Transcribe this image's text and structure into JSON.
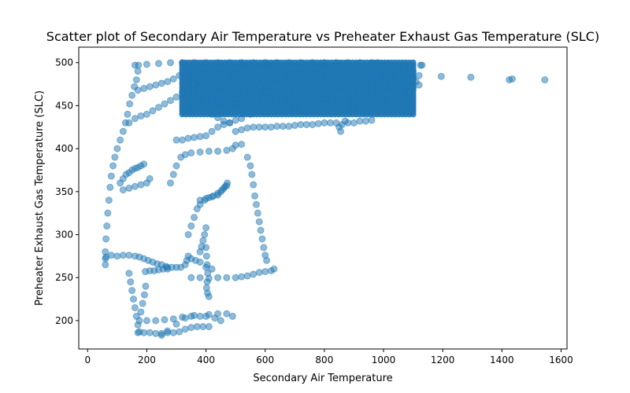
{
  "chart_data": {
    "type": "scatter",
    "title": "Scatter plot of Secondary Air Temperature vs Preheater Exhaust Gas Temperature (SLC)",
    "xlabel": "Secondary Air Temperature",
    "ylabel": "Preheater Exhaust Gas Temperature (SLC)",
    "xlim": [
      -30,
      1620
    ],
    "ylim": [
      167,
      518
    ],
    "xticks": [
      0,
      200,
      400,
      600,
      800,
      1000,
      1200,
      1400,
      1600
    ],
    "yticks": [
      200,
      250,
      300,
      350,
      400,
      450,
      500
    ],
    "grid": false,
    "marker_color": "#1f77b4",
    "marker_alpha": 0.5,
    "dense_band": {
      "x_range": [
        320,
        1100
      ],
      "y_range": [
        440,
        500
      ]
    },
    "points": [
      [
        60,
        265
      ],
      [
        60,
        280
      ],
      [
        62,
        295
      ],
      [
        65,
        310
      ],
      [
        68,
        325
      ],
      [
        72,
        340
      ],
      [
        76,
        355
      ],
      [
        80,
        368
      ],
      [
        86,
        380
      ],
      [
        92,
        390
      ],
      [
        100,
        400
      ],
      [
        110,
        410
      ],
      [
        120,
        420
      ],
      [
        128,
        430
      ],
      [
        135,
        440
      ],
      [
        142,
        452
      ],
      [
        150,
        462
      ],
      [
        158,
        472
      ],
      [
        165,
        480
      ],
      [
        170,
        490
      ],
      [
        172,
        497
      ],
      [
        60,
        272
      ],
      [
        62,
        274
      ],
      [
        80,
        276
      ],
      [
        100,
        275
      ],
      [
        120,
        276
      ],
      [
        140,
        276
      ],
      [
        160,
        275
      ],
      [
        175,
        274
      ],
      [
        190,
        272
      ],
      [
        205,
        270
      ],
      [
        220,
        268
      ],
      [
        235,
        266
      ],
      [
        250,
        265
      ],
      [
        265,
        263
      ],
      [
        270,
        262
      ],
      [
        140,
        255
      ],
      [
        145,
        245
      ],
      [
        150,
        235
      ],
      [
        155,
        225
      ],
      [
        160,
        215
      ],
      [
        165,
        205
      ],
      [
        170,
        195
      ],
      [
        175,
        187
      ],
      [
        175,
        200
      ],
      [
        180,
        210
      ],
      [
        186,
        220
      ],
      [
        192,
        230
      ],
      [
        196,
        240
      ],
      [
        170,
        186
      ],
      [
        190,
        186
      ],
      [
        210,
        186
      ],
      [
        230,
        185
      ],
      [
        250,
        185
      ],
      [
        270,
        186
      ],
      [
        290,
        186
      ],
      [
        310,
        187
      ],
      [
        330,
        190
      ],
      [
        350,
        192
      ],
      [
        370,
        193
      ],
      [
        390,
        193
      ],
      [
        410,
        193
      ],
      [
        200,
        200
      ],
      [
        230,
        200
      ],
      [
        260,
        201
      ],
      [
        290,
        202
      ],
      [
        320,
        204
      ],
      [
        350,
        205
      ],
      [
        380,
        205
      ],
      [
        410,
        207
      ],
      [
        440,
        208
      ],
      [
        470,
        208
      ],
      [
        490,
        205
      ],
      [
        250,
        183
      ],
      [
        270,
        188
      ],
      [
        300,
        196
      ],
      [
        330,
        203
      ],
      [
        360,
        206
      ],
      [
        400,
        205
      ],
      [
        430,
        203
      ],
      [
        450,
        200
      ],
      [
        195,
        257
      ],
      [
        210,
        258
      ],
      [
        225,
        258
      ],
      [
        240,
        259
      ],
      [
        255,
        260
      ],
      [
        270,
        260
      ],
      [
        285,
        262
      ],
      [
        300,
        262
      ],
      [
        315,
        262
      ],
      [
        330,
        265
      ],
      [
        335,
        270
      ],
      [
        340,
        275
      ],
      [
        350,
        272
      ],
      [
        365,
        270
      ],
      [
        380,
        268
      ],
      [
        400,
        262
      ],
      [
        420,
        260
      ],
      [
        350,
        250
      ],
      [
        380,
        250
      ],
      [
        410,
        249
      ],
      [
        440,
        250
      ],
      [
        470,
        250
      ],
      [
        500,
        250
      ],
      [
        520,
        251
      ],
      [
        540,
        252
      ],
      [
        560,
        254
      ],
      [
        580,
        256
      ],
      [
        600,
        257
      ],
      [
        620,
        258
      ],
      [
        630,
        260
      ],
      [
        340,
        300
      ],
      [
        350,
        310
      ],
      [
        360,
        320
      ],
      [
        370,
        330
      ],
      [
        380,
        335
      ],
      [
        395,
        340
      ],
      [
        410,
        343
      ],
      [
        425,
        345
      ],
      [
        440,
        348
      ],
      [
        455,
        352
      ],
      [
        465,
        356
      ],
      [
        472,
        360
      ],
      [
        400,
        308
      ],
      [
        395,
        300
      ],
      [
        390,
        293
      ],
      [
        385,
        286
      ],
      [
        380,
        280
      ],
      [
        380,
        340
      ],
      [
        400,
        342
      ],
      [
        420,
        344
      ],
      [
        440,
        346
      ],
      [
        450,
        350
      ],
      [
        460,
        354
      ],
      [
        470,
        357
      ],
      [
        280,
        360
      ],
      [
        290,
        370
      ],
      [
        300,
        380
      ],
      [
        315,
        390
      ],
      [
        330,
        393
      ],
      [
        350,
        395
      ],
      [
        380,
        396
      ],
      [
        410,
        397
      ],
      [
        440,
        397
      ],
      [
        470,
        398
      ],
      [
        490,
        400
      ],
      [
        500,
        404
      ],
      [
        300,
        410
      ],
      [
        320,
        410
      ],
      [
        340,
        412
      ],
      [
        360,
        413
      ],
      [
        380,
        414
      ],
      [
        400,
        415
      ],
      [
        420,
        420
      ],
      [
        440,
        425
      ],
      [
        460,
        428
      ],
      [
        480,
        430
      ],
      [
        500,
        433
      ],
      [
        520,
        435
      ],
      [
        110,
        360
      ],
      [
        120,
        365
      ],
      [
        130,
        370
      ],
      [
        140,
        372
      ],
      [
        150,
        375
      ],
      [
        160,
        377
      ],
      [
        170,
        378
      ],
      [
        180,
        380
      ],
      [
        190,
        382
      ],
      [
        120,
        352
      ],
      [
        140,
        354
      ],
      [
        160,
        356
      ],
      [
        180,
        358
      ],
      [
        200,
        360
      ],
      [
        210,
        365
      ],
      [
        140,
        430
      ],
      [
        160,
        435
      ],
      [
        180,
        438
      ],
      [
        200,
        440
      ],
      [
        220,
        444
      ],
      [
        240,
        448
      ],
      [
        260,
        452
      ],
      [
        280,
        456
      ],
      [
        300,
        460
      ],
      [
        320,
        465
      ],
      [
        340,
        470
      ],
      [
        360,
        476
      ],
      [
        170,
        468
      ],
      [
        190,
        470
      ],
      [
        210,
        472
      ],
      [
        230,
        474
      ],
      [
        250,
        476
      ],
      [
        270,
        478
      ],
      [
        290,
        481
      ],
      [
        310,
        485
      ],
      [
        330,
        488
      ],
      [
        350,
        492
      ],
      [
        160,
        497
      ],
      [
        200,
        498
      ],
      [
        240,
        499
      ],
      [
        280,
        500
      ],
      [
        320,
        500
      ],
      [
        360,
        500
      ],
      [
        400,
        500
      ],
      [
        440,
        500
      ],
      [
        480,
        500
      ],
      [
        520,
        500
      ],
      [
        560,
        500
      ],
      [
        600,
        500
      ],
      [
        640,
        500
      ],
      [
        680,
        500
      ],
      [
        720,
        500
      ],
      [
        760,
        500
      ],
      [
        800,
        500
      ],
      [
        840,
        500
      ],
      [
        880,
        500
      ],
      [
        920,
        500
      ],
      [
        960,
        499
      ],
      [
        400,
        480
      ],
      [
        450,
        475
      ],
      [
        500,
        470
      ],
      [
        550,
        468
      ],
      [
        600,
        466
      ],
      [
        650,
        464
      ],
      [
        700,
        462
      ],
      [
        750,
        460
      ],
      [
        800,
        458
      ],
      [
        850,
        456
      ],
      [
        900,
        455
      ],
      [
        950,
        455
      ],
      [
        1000,
        455
      ],
      [
        1040,
        458
      ],
      [
        1070,
        462
      ],
      [
        1090,
        466
      ],
      [
        1100,
        470
      ],
      [
        550,
        440
      ],
      [
        600,
        442
      ],
      [
        650,
        444
      ],
      [
        700,
        446
      ],
      [
        750,
        447
      ],
      [
        800,
        448
      ],
      [
        850,
        448
      ],
      [
        900,
        449
      ],
      [
        950,
        450
      ],
      [
        1000,
        451
      ],
      [
        1050,
        452
      ],
      [
        1080,
        453
      ],
      [
        420,
        440
      ],
      [
        440,
        436
      ],
      [
        460,
        432
      ],
      [
        480,
        430
      ],
      [
        960,
        500
      ],
      [
        980,
        499
      ],
      [
        1000,
        498
      ],
      [
        1020,
        496
      ],
      [
        1040,
        494
      ],
      [
        1060,
        490
      ],
      [
        1080,
        486
      ],
      [
        1100,
        482
      ],
      [
        1110,
        478
      ],
      [
        1120,
        474
      ],
      [
        500,
        420
      ],
      [
        520,
        422
      ],
      [
        540,
        424
      ],
      [
        560,
        425
      ],
      [
        580,
        425
      ],
      [
        600,
        425
      ],
      [
        620,
        425
      ],
      [
        640,
        426
      ],
      [
        660,
        426
      ],
      [
        680,
        426
      ],
      [
        700,
        427
      ],
      [
        720,
        428
      ],
      [
        740,
        428
      ],
      [
        760,
        428
      ],
      [
        780,
        429
      ],
      [
        800,
        430
      ],
      [
        820,
        430
      ],
      [
        840,
        430
      ],
      [
        860,
        428
      ],
      [
        880,
        430
      ],
      [
        900,
        430
      ],
      [
        920,
        432
      ],
      [
        940,
        432
      ],
      [
        960,
        433
      ],
      [
        855,
        420
      ],
      [
        850,
        425
      ],
      [
        870,
        432
      ],
      [
        520,
        405
      ],
      [
        540,
        390
      ],
      [
        550,
        380
      ],
      [
        555,
        370
      ],
      [
        560,
        358
      ],
      [
        565,
        345
      ],
      [
        570,
        335
      ],
      [
        575,
        325
      ],
      [
        580,
        315
      ],
      [
        585,
        305
      ],
      [
        590,
        295
      ],
      [
        595,
        285
      ],
      [
        600,
        276
      ],
      [
        605,
        270
      ],
      [
        400,
        285
      ],
      [
        402,
        275
      ],
      [
        404,
        265
      ],
      [
        406,
        255
      ],
      [
        404,
        245
      ],
      [
        402,
        238
      ],
      [
        405,
        232
      ],
      [
        410,
        228
      ],
      [
        1130,
        497
      ],
      [
        1195,
        484
      ],
      [
        1295,
        483
      ],
      [
        1425,
        480
      ],
      [
        1435,
        481
      ],
      [
        1545,
        480
      ],
      [
        980,
        500
      ],
      [
        1015,
        499
      ],
      [
        1040,
        497
      ],
      [
        1070,
        495
      ],
      [
        1100,
        490
      ],
      [
        1125,
        497
      ],
      [
        1120,
        485
      ],
      [
        1100,
        480
      ],
      [
        1080,
        475
      ],
      [
        1090,
        472
      ]
    ]
  }
}
